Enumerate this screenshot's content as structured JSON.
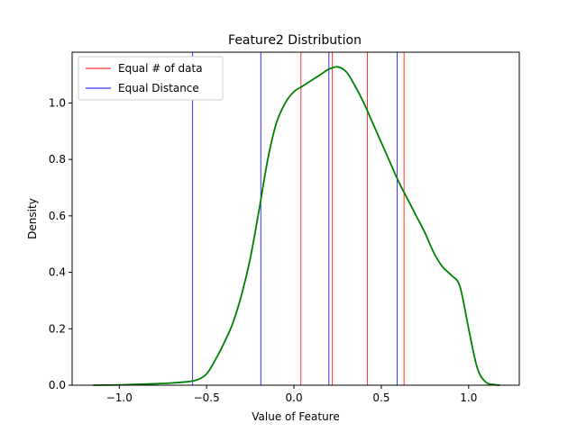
{
  "chart_data": {
    "type": "line",
    "title": "Feature2 Distribution",
    "xlabel": "Value of Feature",
    "ylabel": "Density",
    "xlim": [
      -1.27,
      1.29
    ],
    "ylim": [
      0,
      1.18
    ],
    "xticks": [
      -1.0,
      -0.5,
      0.0,
      0.5,
      1.0
    ],
    "xtick_labels": [
      "−1.0",
      "−0.5",
      "0.0",
      "0.5",
      "1.0"
    ],
    "yticks": [
      0.0,
      0.2,
      0.4,
      0.6,
      0.8,
      1.0
    ],
    "ytick_labels": [
      "0.0",
      "0.2",
      "0.4",
      "0.6",
      "0.8",
      "1.0"
    ],
    "grid": false,
    "legend_position": "top-left",
    "series": [
      {
        "kind": "curve",
        "color": "#008000",
        "x": [
          -1.15,
          -1.0,
          -0.9,
          -0.8,
          -0.7,
          -0.6,
          -0.55,
          -0.5,
          -0.45,
          -0.4,
          -0.35,
          -0.3,
          -0.25,
          -0.2,
          -0.15,
          -0.1,
          -0.05,
          0.0,
          0.05,
          0.1,
          0.15,
          0.2,
          0.25,
          0.3,
          0.35,
          0.4,
          0.45,
          0.5,
          0.55,
          0.6,
          0.65,
          0.7,
          0.75,
          0.8,
          0.85,
          0.9,
          0.95,
          1.0,
          1.05,
          1.1,
          1.15,
          1.18
        ],
        "y": [
          0.0,
          0.001,
          0.003,
          0.005,
          0.008,
          0.013,
          0.02,
          0.04,
          0.09,
          0.15,
          0.22,
          0.32,
          0.45,
          0.62,
          0.8,
          0.93,
          1.0,
          1.04,
          1.06,
          1.08,
          1.1,
          1.12,
          1.128,
          1.11,
          1.06,
          1.0,
          0.93,
          0.86,
          0.79,
          0.72,
          0.66,
          0.6,
          0.54,
          0.47,
          0.42,
          0.39,
          0.35,
          0.2,
          0.06,
          0.01,
          0.002,
          0.0
        ]
      },
      {
        "name": "Equal # of data",
        "kind": "vlines",
        "color": "#ff0000",
        "x": [
          0.04,
          0.22,
          0.42,
          0.63
        ]
      },
      {
        "name": "Equal Distance",
        "kind": "vlines",
        "color": "#0000ff",
        "x": [
          -0.58,
          -0.19,
          0.2,
          0.59
        ]
      }
    ]
  }
}
